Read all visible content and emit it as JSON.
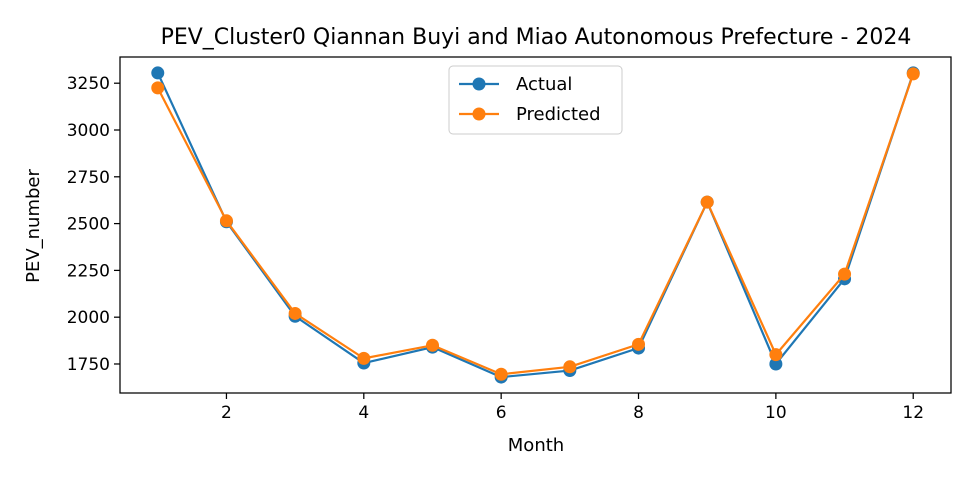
{
  "chart_data": {
    "type": "line",
    "title": "PEV_Cluster0 Qiannan Buyi and Miao Autonomous Prefecture - 2024",
    "xlabel": "Month",
    "ylabel": "PEV_number",
    "x": [
      1,
      2,
      3,
      4,
      5,
      6,
      7,
      8,
      9,
      10,
      11,
      12
    ],
    "xlim": [
      0.45,
      12.55
    ],
    "ylim": [
      1595,
      3390
    ],
    "xticks": [
      2,
      4,
      6,
      8,
      10,
      12
    ],
    "yticks": [
      1750,
      2000,
      2250,
      2500,
      2750,
      3000,
      3250
    ],
    "grid": false,
    "legend_position": "top-center",
    "series": [
      {
        "name": "Actual",
        "color": "#1f77b4",
        "marker": "circle",
        "values": [
          3305,
          2510,
          2005,
          1755,
          1840,
          1680,
          1715,
          1835,
          2615,
          1750,
          2205,
          3305
        ]
      },
      {
        "name": "Predicted",
        "color": "#ff7f0e",
        "marker": "circle",
        "values": [
          3225,
          2515,
          2020,
          1780,
          1850,
          1695,
          1735,
          1855,
          2615,
          1800,
          2230,
          3300
        ]
      }
    ]
  }
}
